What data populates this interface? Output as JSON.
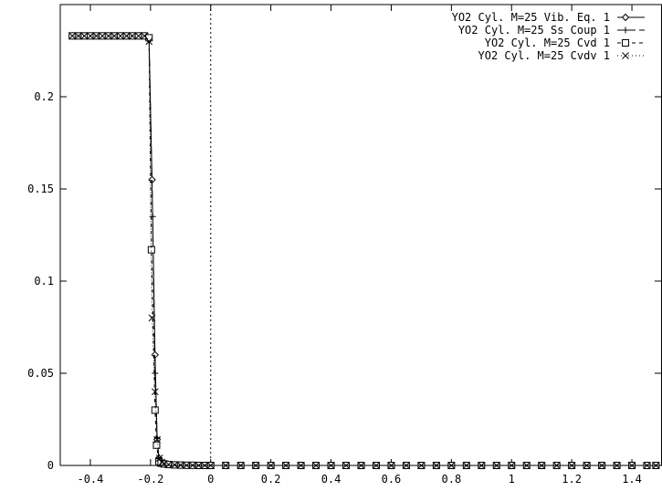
{
  "chart_data": {
    "type": "line",
    "title": "",
    "xlabel": "",
    "ylabel": "",
    "xlim": [
      -0.5,
      1.5
    ],
    "ylim": [
      0,
      0.25
    ],
    "x_ticks": [
      -0.4,
      -0.2,
      0,
      0.2,
      0.4,
      0.6,
      0.8,
      1,
      1.2,
      1.4
    ],
    "x_tick_labels": [
      "-0.4",
      "-0.2",
      "0",
      "0.2",
      "0.4",
      "0.6",
      "0.8",
      "1",
      "1.2",
      "1.4"
    ],
    "y_ticks": [
      0,
      0.05,
      0.1,
      0.15,
      0.2
    ],
    "y_tick_labels": [
      "0",
      "0.05",
      "0.1",
      "0.15",
      "0.2"
    ],
    "vertical_reference_line_x": 0,
    "grid": false,
    "legend_position": "top-right",
    "series": [
      {
        "name": "YO2 Cyl. M=25 Vib. Eq. 1",
        "marker": "diamond",
        "dash": "solid",
        "x": [
          -0.46,
          -0.44,
          -0.42,
          -0.4,
          -0.38,
          -0.36,
          -0.34,
          -0.32,
          -0.3,
          -0.28,
          -0.26,
          -0.24,
          -0.22,
          -0.205,
          -0.195,
          -0.185,
          -0.178,
          -0.172,
          -0.165,
          -0.155,
          -0.14,
          -0.12,
          -0.1,
          -0.08,
          -0.06,
          -0.04,
          -0.02,
          0,
          0.05,
          0.1,
          0.15,
          0.2,
          0.25,
          0.3,
          0.35,
          0.4,
          0.45,
          0.5,
          0.55,
          0.6,
          0.65,
          0.7,
          0.75,
          0.8,
          0.85,
          0.9,
          0.95,
          1,
          1.05,
          1.1,
          1.15,
          1.2,
          1.25,
          1.3,
          1.35,
          1.4,
          1.45,
          1.48
        ],
        "y": [
          0.233,
          0.233,
          0.233,
          0.233,
          0.233,
          0.233,
          0.233,
          0.233,
          0.233,
          0.233,
          0.233,
          0.233,
          0.233,
          0.231,
          0.155,
          0.06,
          0.014,
          0.004,
          0.0018,
          0.001,
          0.0005,
          0.0003,
          0.0002,
          0.0001,
          0.0001,
          0,
          0,
          0,
          0,
          0,
          0,
          0,
          0,
          0,
          0,
          0,
          0,
          0,
          0,
          0,
          0,
          0,
          0,
          0,
          0,
          0,
          0,
          0,
          0,
          0,
          0,
          0,
          0,
          0,
          0,
          0,
          0,
          0
        ]
      },
      {
        "name": "YO2 Cyl. M=25 Ss Coup 1",
        "marker": "plus",
        "dash": "long-dash",
        "x": [
          -0.46,
          -0.44,
          -0.42,
          -0.4,
          -0.38,
          -0.36,
          -0.34,
          -0.32,
          -0.3,
          -0.28,
          -0.26,
          -0.24,
          -0.22,
          -0.205,
          -0.193,
          -0.185,
          -0.178,
          -0.172,
          -0.165,
          -0.155,
          -0.14,
          -0.12,
          -0.1,
          -0.08,
          -0.06,
          -0.04,
          -0.02,
          0,
          0.05,
          0.1,
          0.15,
          0.2,
          0.25,
          0.3,
          0.35,
          0.4,
          0.45,
          0.5,
          0.55,
          0.6,
          0.65,
          0.7,
          0.75,
          0.8,
          0.85,
          0.9,
          0.95,
          1,
          1.05,
          1.1,
          1.15,
          1.2,
          1.25,
          1.3,
          1.35,
          1.4,
          1.45,
          1.48
        ],
        "y": [
          0.233,
          0.233,
          0.233,
          0.233,
          0.233,
          0.233,
          0.233,
          0.233,
          0.233,
          0.233,
          0.233,
          0.233,
          0.233,
          0.232,
          0.135,
          0.05,
          0.015,
          0.004,
          0.0018,
          0.001,
          0.0005,
          0.0003,
          0.0002,
          0.0001,
          0.0001,
          0,
          0,
          0,
          0,
          0,
          0,
          0,
          0,
          0,
          0,
          0,
          0,
          0,
          0,
          0,
          0,
          0,
          0,
          0,
          0,
          0,
          0,
          0,
          0,
          0,
          0,
          0,
          0,
          0,
          0,
          0,
          0,
          0
        ]
      },
      {
        "name": "YO2 Cyl. M=25 Cvd 1",
        "marker": "square",
        "dash": "short-dash",
        "x": [
          -0.46,
          -0.44,
          -0.42,
          -0.4,
          -0.38,
          -0.36,
          -0.34,
          -0.32,
          -0.3,
          -0.28,
          -0.26,
          -0.24,
          -0.22,
          -0.205,
          -0.197,
          -0.185,
          -0.18,
          -0.172,
          -0.165,
          -0.155,
          -0.14,
          -0.12,
          -0.1,
          -0.08,
          -0.06,
          -0.04,
          -0.02,
          0,
          0.05,
          0.1,
          0.15,
          0.2,
          0.25,
          0.3,
          0.35,
          0.4,
          0.45,
          0.5,
          0.55,
          0.6,
          0.65,
          0.7,
          0.75,
          0.8,
          0.85,
          0.9,
          0.95,
          1,
          1.05,
          1.1,
          1.15,
          1.2,
          1.25,
          1.3,
          1.35,
          1.4,
          1.45,
          1.48
        ],
        "y": [
          0.233,
          0.233,
          0.233,
          0.233,
          0.233,
          0.233,
          0.233,
          0.233,
          0.233,
          0.233,
          0.233,
          0.233,
          0.233,
          0.232,
          0.117,
          0.03,
          0.011,
          0.002,
          0.0012,
          0.0008,
          0.0005,
          0.0003,
          0.0002,
          0.0001,
          0.0001,
          0,
          0,
          0,
          0,
          0,
          0,
          0,
          0,
          0,
          0,
          0,
          0,
          0,
          0,
          0,
          0,
          0,
          0,
          0,
          0,
          0,
          0,
          0,
          0,
          0,
          0,
          0,
          0,
          0,
          0,
          0,
          0,
          0
        ]
      },
      {
        "name": "YO2 Cyl. M=25 Cvdv 1",
        "marker": "cross",
        "dash": "dotted",
        "x": [
          -0.46,
          -0.44,
          -0.42,
          -0.4,
          -0.38,
          -0.36,
          -0.34,
          -0.32,
          -0.3,
          -0.28,
          -0.26,
          -0.24,
          -0.22,
          -0.205,
          -0.195,
          -0.185,
          -0.178,
          -0.17,
          -0.162,
          -0.155,
          -0.14,
          -0.12,
          -0.1,
          -0.08,
          -0.06,
          -0.04,
          -0.02,
          0,
          0.05,
          0.1,
          0.15,
          0.2,
          0.25,
          0.3,
          0.35,
          0.4,
          0.45,
          0.5,
          0.55,
          0.6,
          0.65,
          0.7,
          0.75,
          0.8,
          0.85,
          0.9,
          0.95,
          1,
          1.05,
          1.1,
          1.15,
          1.2,
          1.25,
          1.3,
          1.35,
          1.4,
          1.45,
          1.48
        ],
        "y": [
          0.233,
          0.233,
          0.233,
          0.233,
          0.233,
          0.233,
          0.233,
          0.233,
          0.233,
          0.233,
          0.233,
          0.233,
          0.233,
          0.23,
          0.08,
          0.04,
          0.014,
          0.004,
          0.0018,
          0.001,
          0.0005,
          0.0003,
          0.0002,
          0.0001,
          0.0001,
          0,
          0,
          0,
          0,
          0,
          0,
          0,
          0,
          0,
          0,
          0,
          0,
          0,
          0,
          0,
          0,
          0,
          0,
          0,
          0,
          0,
          0,
          0,
          0,
          0,
          0,
          0,
          0,
          0,
          0,
          0,
          0,
          0
        ]
      }
    ]
  },
  "colors": {
    "axis": "#000000",
    "series": "#000000",
    "background": "#ffffff"
  }
}
